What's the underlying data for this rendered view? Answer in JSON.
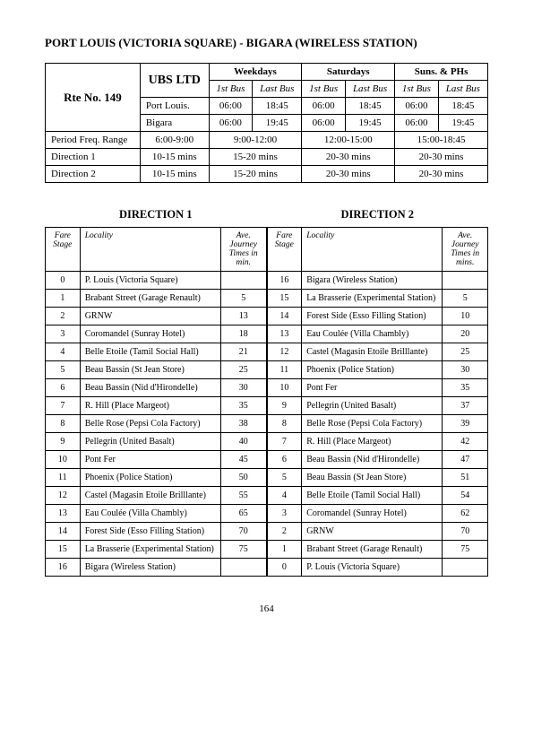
{
  "title": "PORT LOUIS (VICTORIA SQUARE) - BIGARA (WIRELESS STATION)",
  "page_number": "164",
  "sched": {
    "route_no": "Rte No. 149",
    "operator": "UBS LTD",
    "day_headers": [
      "Weekdays",
      "Saturdays",
      "Suns. & PHs"
    ],
    "sub_headers": [
      "1st Bus",
      "Last Bus"
    ],
    "rows": [
      {
        "stop": "Port Louis.",
        "wk": [
          "06:00",
          "18:45"
        ],
        "sa": [
          "06:00",
          "18:45"
        ],
        "su": [
          "06:00",
          "18:45"
        ]
      },
      {
        "stop": "Bigara",
        "wk": [
          "06:00",
          "19:45"
        ],
        "sa": [
          "06:00",
          "19:45"
        ],
        "su": [
          "06:00",
          "19:45"
        ]
      }
    ],
    "freq_label": "Period Freq. Range",
    "freq": [
      "6:00-9:00",
      "9:00-12:00",
      "12:00-15:00",
      "15:00-18:45"
    ],
    "dir_rows": [
      {
        "label": "Direction 1",
        "v": [
          "10-15 mins",
          "15-20 mins",
          "20-30 mins",
          "20-30 mins"
        ]
      },
      {
        "label": "Direction 2",
        "v": [
          "10-15 mins",
          "15-20 mins",
          "20-30 mins",
          "20-30 mins"
        ]
      }
    ]
  },
  "dir_names": [
    "DIRECTION  1",
    "DIRECTION  2"
  ],
  "fare_headers": {
    "stage": "Fare Stage",
    "locality": "Locality",
    "time": "Ave. Journey Times in min."
  },
  "fare_headers2": {
    "stage": "Fare Stage",
    "locality": "Locality",
    "time": "Ave. Journey Times in mins."
  },
  "dir1": [
    {
      "s": "0",
      "l": "P. Louis (Victoria Square)",
      "t": ""
    },
    {
      "s": "1",
      "l": "Brabant Street (Garage Renault)",
      "t": "5"
    },
    {
      "s": "2",
      "l": "GRNW",
      "t": "13"
    },
    {
      "s": "3",
      "l": "Coromandel (Sunray Hotel)",
      "t": "18"
    },
    {
      "s": "4",
      "l": "Belle Etoile (Tamil Social Hall)",
      "t": "21"
    },
    {
      "s": "5",
      "l": "Beau Bassin (St Jean Store)",
      "t": "25"
    },
    {
      "s": "6",
      "l": "Beau Bassin (Nid d'Hirondelle)",
      "t": "30"
    },
    {
      "s": "7",
      "l": "R. Hill (Place Margeot)",
      "t": "35"
    },
    {
      "s": "8",
      "l": "Belle Rose (Pepsi Cola Factory)",
      "t": "38"
    },
    {
      "s": "9",
      "l": "Pellegrin (United Basalt)",
      "t": "40"
    },
    {
      "s": "10",
      "l": "Pont Fer",
      "t": "45"
    },
    {
      "s": "11",
      "l": "Phoenix (Police Station)",
      "t": "50"
    },
    {
      "s": "12",
      "l": "Castel (Magasin Etoile Brilllante)",
      "t": "55"
    },
    {
      "s": "13",
      "l": "Eau Coulée (Villa Chambly)",
      "t": "65"
    },
    {
      "s": "14",
      "l": "Forest Side (Esso Filling Station)",
      "t": "70"
    },
    {
      "s": "15",
      "l": "La Brasserie (Experimental Station)",
      "t": "75"
    },
    {
      "s": "16",
      "l": "Bigara (Wireless Station)",
      "t": ""
    }
  ],
  "dir2": [
    {
      "s": "16",
      "l": "Bigara (Wireless Station)",
      "t": ""
    },
    {
      "s": "15",
      "l": "La Brasserie (Experimental Station)",
      "t": "5"
    },
    {
      "s": "14",
      "l": "Forest Side (Esso Filling Station)",
      "t": "10"
    },
    {
      "s": "13",
      "l": "Eau Coulée (Villa Chambly)",
      "t": "20"
    },
    {
      "s": "12",
      "l": "Castel (Magasin Etoile Brilllante)",
      "t": "25"
    },
    {
      "s": "11",
      "l": "Phoenix (Police Station)",
      "t": "30"
    },
    {
      "s": "10",
      "l": "Pont Fer",
      "t": "35"
    },
    {
      "s": "9",
      "l": "Pellegrin (United Basalt)",
      "t": "37"
    },
    {
      "s": "8",
      "l": "Belle Rose (Pepsi Cola Factory)",
      "t": "39"
    },
    {
      "s": "7",
      "l": "R. Hill (Place Margeot)",
      "t": "42"
    },
    {
      "s": "6",
      "l": "Beau Bassin (Nid d'Hirondelle)",
      "t": "47"
    },
    {
      "s": "5",
      "l": "Beau Bassin (St Jean Store)",
      "t": "51"
    },
    {
      "s": "4",
      "l": "Belle Etoile (Tamil Social Hall)",
      "t": "54"
    },
    {
      "s": "3",
      "l": "Coromandel (Sunray Hotel)",
      "t": "62"
    },
    {
      "s": "2",
      "l": "GRNW",
      "t": "70"
    },
    {
      "s": "1",
      "l": "Brabant Street (Garage Renault)",
      "t": "75"
    },
    {
      "s": "0",
      "l": "P. Louis (Victoria Square)",
      "t": ""
    }
  ]
}
